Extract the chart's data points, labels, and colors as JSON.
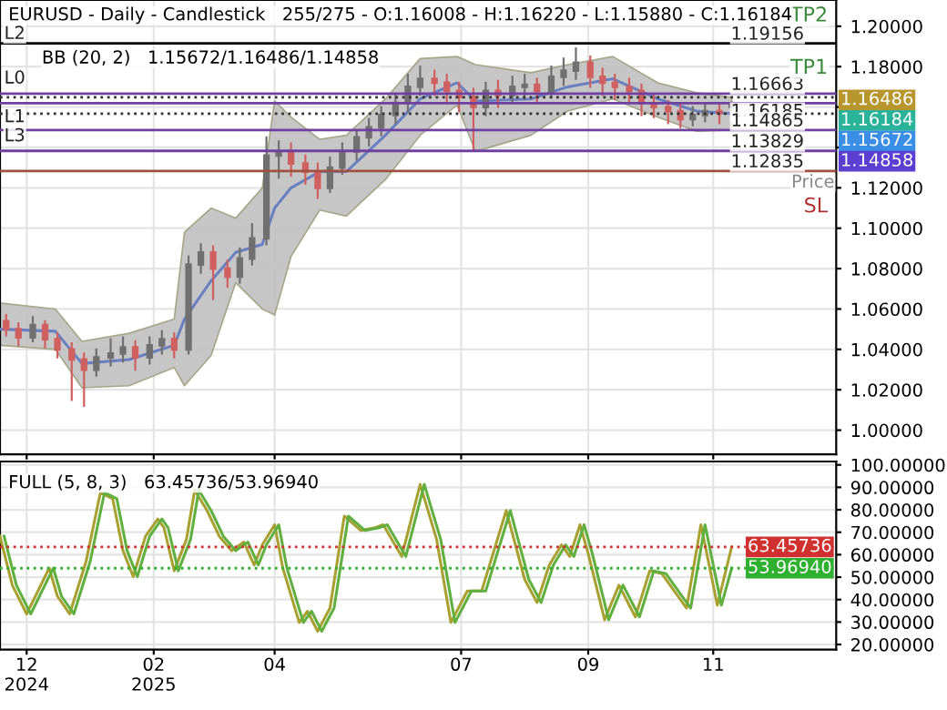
{
  "chart_data": [
    {
      "type": "candlestick",
      "title": "EURUSD - Daily - Candlestick   255/275 - O:1.16008 - H:1.16220 - L:1.15880 - C:1.16184",
      "subtitle": "BB (20, 2)   1.15672/1.16486/1.14858",
      "x": [
        "2024-11-21",
        "2024-11-27",
        "2024-12-04",
        "2024-12-10",
        "2024-12-16",
        "2024-12-23",
        "2024-12-29",
        "2025-01-04",
        "2025-01-11",
        "2025-01-17",
        "2025-01-23",
        "2025-01-30",
        "2025-02-05",
        "2025-02-11",
        "2025-02-18",
        "2025-02-24",
        "2025-03-02",
        "2025-03-09",
        "2025-03-15",
        "2025-03-21",
        "2025-03-28",
        "2025-04-03",
        "2025-04-09",
        "2025-04-16",
        "2025-04-22",
        "2025-04-28",
        "2025-05-04",
        "2025-05-11",
        "2025-05-17",
        "2025-05-23",
        "2025-05-30",
        "2025-06-05",
        "2025-06-11",
        "2025-06-18",
        "2025-06-24",
        "2025-06-30",
        "2025-07-07",
        "2025-07-13",
        "2025-07-19",
        "2025-07-26",
        "2025-08-01",
        "2025-08-07",
        "2025-08-14",
        "2025-08-20",
        "2025-08-26",
        "2025-09-02",
        "2025-09-08",
        "2025-09-14",
        "2025-09-21",
        "2025-09-27",
        "2025-10-03",
        "2025-10-10",
        "2025-10-16",
        "2025-10-22",
        "2025-10-28",
        "2025-11-04",
        "2025-11-10"
      ],
      "ohlc": [
        [
          1.054,
          1.057,
          1.047,
          1.05
        ],
        [
          1.05,
          1.053,
          1.042,
          1.046
        ],
        [
          1.046,
          1.056,
          1.044,
          1.052
        ],
        [
          1.052,
          1.054,
          1.041,
          1.045
        ],
        [
          1.045,
          1.048,
          1.036,
          1.04
        ],
        [
          1.04,
          1.043,
          1.015,
          1.035
        ],
        [
          1.035,
          1.038,
          1.012,
          1.03
        ],
        [
          1.03,
          1.04,
          1.027,
          1.036
        ],
        [
          1.036,
          1.045,
          1.032,
          1.038
        ],
        [
          1.038,
          1.046,
          1.034,
          1.041
        ],
        [
          1.041,
          1.044,
          1.03,
          1.036
        ],
        [
          1.036,
          1.046,
          1.033,
          1.042
        ],
        [
          1.042,
          1.049,
          1.038,
          1.045
        ],
        [
          1.045,
          1.048,
          1.036,
          1.04
        ],
        [
          1.04,
          1.086,
          1.038,
          1.082
        ],
        [
          1.082,
          1.092,
          1.078,
          1.088
        ],
        [
          1.088,
          1.091,
          1.065,
          1.08
        ],
        [
          1.08,
          1.084,
          1.071,
          1.076
        ],
        [
          1.076,
          1.09,
          1.073,
          1.085
        ],
        [
          1.085,
          1.102,
          1.082,
          1.095
        ],
        [
          1.095,
          1.145,
          1.092,
          1.136
        ],
        [
          1.136,
          1.143,
          1.125,
          1.138
        ],
        [
          1.138,
          1.142,
          1.126,
          1.132
        ],
        [
          1.132,
          1.136,
          1.122,
          1.128
        ],
        [
          1.128,
          1.132,
          1.115,
          1.12
        ],
        [
          1.12,
          1.135,
          1.118,
          1.13
        ],
        [
          1.13,
          1.142,
          1.127,
          1.138
        ],
        [
          1.138,
          1.148,
          1.134,
          1.145
        ],
        [
          1.145,
          1.154,
          1.141,
          1.15
        ],
        [
          1.15,
          1.16,
          1.146,
          1.156
        ],
        [
          1.156,
          1.166,
          1.152,
          1.162
        ],
        [
          1.162,
          1.176,
          1.158,
          1.17
        ],
        [
          1.17,
          1.18,
          1.166,
          1.174
        ],
        [
          1.174,
          1.178,
          1.166,
          1.172
        ],
        [
          1.172,
          1.176,
          1.162,
          1.168
        ],
        [
          1.168,
          1.172,
          1.158,
          1.165
        ],
        [
          1.165,
          1.169,
          1.139,
          1.16
        ],
        [
          1.16,
          1.172,
          1.156,
          1.168
        ],
        [
          1.168,
          1.173,
          1.16,
          1.166
        ],
        [
          1.166,
          1.175,
          1.162,
          1.17
        ],
        [
          1.17,
          1.176,
          1.164,
          1.171
        ],
        [
          1.171,
          1.174,
          1.162,
          1.168
        ],
        [
          1.168,
          1.18,
          1.165,
          1.175
        ],
        [
          1.175,
          1.184,
          1.171,
          1.178
        ],
        [
          1.178,
          1.189,
          1.174,
          1.182
        ],
        [
          1.182,
          1.185,
          1.17,
          1.175
        ],
        [
          1.175,
          1.179,
          1.166,
          1.172
        ],
        [
          1.172,
          1.176,
          1.164,
          1.17
        ],
        [
          1.17,
          1.174,
          1.162,
          1.168
        ],
        [
          1.168,
          1.171,
          1.156,
          1.162
        ],
        [
          1.162,
          1.166,
          1.155,
          1.16
        ],
        [
          1.16,
          1.163,
          1.152,
          1.158
        ],
        [
          1.158,
          1.161,
          1.15,
          1.154
        ],
        [
          1.154,
          1.16,
          1.151,
          1.156
        ],
        [
          1.156,
          1.162,
          1.153,
          1.158
        ],
        [
          1.158,
          1.161,
          1.152,
          1.157
        ],
        [
          1.16008,
          1.1622,
          1.1588,
          1.16184
        ]
      ],
      "series": [
        {
          "type": "line",
          "color": "#6a7fc0",
          "x": [
            "2024-11-18",
            "2024-12-15",
            "2024-12-28",
            "2025-01-20",
            "2025-02-11",
            "2025-02-16",
            "2025-03-01",
            "2025-03-13",
            "2025-03-26",
            "2025-04-01",
            "2025-04-09",
            "2025-04-23",
            "2025-05-06",
            "2025-05-25",
            "2025-06-11",
            "2025-06-29",
            "2025-07-08",
            "2025-08-04",
            "2025-08-22",
            "2025-09-13",
            "2025-10-05",
            "2025-10-24",
            "2025-11-10"
          ],
          "values": [
            1.05,
            1.049,
            1.033,
            1.035,
            1.042,
            1.055,
            1.074,
            1.088,
            1.092,
            1.11,
            1.12,
            1.128,
            1.128,
            1.146,
            1.164,
            1.172,
            1.163,
            1.164,
            1.17,
            1.174,
            1.164,
            1.158,
            1.15672
          ],
          "lower": [
            1.042,
            1.04,
            1.021,
            1.022,
            1.031,
            1.022,
            1.037,
            1.073,
            1.06,
            1.057,
            1.086,
            1.109,
            1.106,
            1.124,
            1.146,
            1.161,
            1.138,
            1.146,
            1.158,
            1.164,
            1.155,
            1.148,
            1.14858
          ],
          "upper": [
            1.063,
            1.06,
            1.044,
            1.048,
            1.055,
            1.098,
            1.11,
            1.105,
            1.12,
            1.163,
            1.155,
            1.144,
            1.146,
            1.164,
            1.184,
            1.185,
            1.181,
            1.177,
            1.181,
            1.185,
            1.172,
            1.167,
            1.16486
          ]
        }
      ],
      "xlim": [
        "2024-11-18",
        "2025-12-31"
      ],
      "xticks": [
        {
          "value": "2024-12-01",
          "label": null
        },
        {
          "value": "2025-02-01",
          "label": null
        },
        {
          "value": "2025-04-01",
          "label": null
        },
        {
          "value": "2025-07-01",
          "label": null
        },
        {
          "value": "2025-09-01",
          "label": null
        },
        {
          "value": "2025-11-01",
          "label": null
        }
      ],
      "ylim": [
        0.988,
        1.213
      ],
      "yticks": [
        {
          "value": 1.0,
          "label": "1.00000"
        },
        {
          "value": 1.02,
          "label": "1.02000"
        },
        {
          "value": 1.04,
          "label": "1.04000"
        },
        {
          "value": 1.06,
          "label": "1.06000"
        },
        {
          "value": 1.08,
          "label": "1.08000"
        },
        {
          "value": 1.1,
          "label": "1.10000"
        },
        {
          "value": 1.12,
          "label": "1.12000"
        },
        {
          "value": 1.14,
          "label": null
        },
        {
          "value": 1.16,
          "label": null
        },
        {
          "value": 1.18,
          "label": "1.18000"
        },
        {
          "value": 1.2,
          "label": "1.20000"
        }
      ],
      "tick_labels": "y",
      "grid": true,
      "ref_lines": [
        {
          "axis": "y",
          "value": 1.19156,
          "label": "1.19156",
          "color": "#000000",
          "line_style": "solid"
        },
        {
          "axis": "y",
          "value": 1.16663,
          "label": "1.16663",
          "color": "#7040a0",
          "line_style": "solid"
        },
        {
          "axis": "y",
          "value": 1.16185,
          "label": "1.16185",
          "color": "#7040a0",
          "line_style": "solid"
        },
        {
          "axis": "y",
          "value": 1.14865,
          "label": "1.14865",
          "color": "#7040a0",
          "line_style": "solid"
        },
        {
          "axis": "y",
          "value": 1.13829,
          "label": "1.13829",
          "color": "#7040a0",
          "line_style": "solid"
        },
        {
          "axis": "y",
          "value": 1.12835,
          "label": "1.12835",
          "color": "#a05040",
          "line_style": "solid"
        },
        {
          "axis": "y",
          "value": 1.16486,
          "label": null,
          "color": "#333333",
          "line_style": "dotted"
        },
        {
          "axis": "y",
          "value": 1.15672,
          "label": null,
          "color": "#333333",
          "line_style": "dotted"
        }
      ],
      "annotations": [
        "L2",
        "L0",
        "L1",
        "L3",
        "TP2",
        "TP1",
        "Price",
        "SL",
        "1.16486",
        "1.16184",
        "1.15672",
        "1.14858"
      ]
    },
    {
      "type": "line",
      "title": "FULL (5, 8, 3)   63.45736/53.96940",
      "series": [
        {
          "color": "#a8a030",
          "x": [
            "2024-11-18",
            "2024-11-24",
            "2024-12-01",
            "2024-12-12",
            "2024-12-16",
            "2024-12-22",
            "2024-12-30",
            "2025-01-06",
            "2025-01-12",
            "2025-01-17",
            "2025-01-22",
            "2025-01-28",
            "2025-02-03",
            "2025-02-06",
            "2025-02-11",
            "2025-02-17",
            "2025-02-21",
            "2025-02-27",
            "2025-03-05",
            "2025-03-11",
            "2025-03-17",
            "2025-03-22",
            "2025-03-26",
            "2025-04-01",
            "2025-04-05",
            "2025-04-13",
            "2025-04-17",
            "2025-04-22",
            "2025-04-28",
            "2025-05-05",
            "2025-05-13",
            "2025-05-20",
            "2025-05-24",
            "2025-06-02",
            "2025-06-11",
            "2025-06-19",
            "2025-06-26",
            "2025-07-04",
            "2025-07-11",
            "2025-07-23",
            "2025-08-01",
            "2025-08-07",
            "2025-08-13",
            "2025-08-19",
            "2025-08-23",
            "2025-08-28",
            "2025-09-01",
            "2025-09-09",
            "2025-09-16",
            "2025-09-24",
            "2025-10-01",
            "2025-10-07",
            "2025-10-13",
            "2025-10-19",
            "2025-10-26",
            "2025-11-03",
            "2025-11-10"
          ],
          "values": [
            68.2,
            46.4,
            33.6,
            54,
            41.5,
            33.6,
            57,
            87.7,
            84.9,
            61.8,
            50.2,
            68.2,
            75.9,
            72,
            52.8,
            66.9,
            88.7,
            79.7,
            68.2,
            61.8,
            65.6,
            55.4,
            64.4,
            73.3,
            54,
            29.8,
            34.8,
            25.9,
            36.2,
            77.2,
            70.8,
            72,
            73.3,
            59.2,
            91.3,
            66.9,
            29.8,
            43.8,
            43.8,
            79.7,
            49,
            38.7,
            55.4,
            64.4,
            59.2,
            73.3,
            60.5,
            31,
            46.4,
            32.3,
            52.8,
            51.5,
            43.8,
            36.2,
            73.3,
            37.5,
            63.45736
          ]
        },
        {
          "color": "#60b040",
          "x": [
            "2024-11-20",
            "2024-11-26",
            "2024-12-03",
            "2024-12-14",
            "2024-12-18",
            "2024-12-24",
            "2025-01-01",
            "2025-01-08",
            "2025-01-14",
            "2025-01-19",
            "2025-01-24",
            "2025-01-30",
            "2025-02-05",
            "2025-02-08",
            "2025-02-13",
            "2025-02-19",
            "2025-02-23",
            "2025-03-01",
            "2025-03-07",
            "2025-03-13",
            "2025-03-19",
            "2025-03-24",
            "2025-03-28",
            "2025-04-03",
            "2025-04-07",
            "2025-04-15",
            "2025-04-19",
            "2025-04-24",
            "2025-04-30",
            "2025-05-07",
            "2025-05-15",
            "2025-05-22",
            "2025-05-26",
            "2025-06-04",
            "2025-06-13",
            "2025-06-21",
            "2025-06-28",
            "2025-07-06",
            "2025-07-13",
            "2025-07-25",
            "2025-08-03",
            "2025-08-09",
            "2025-08-15",
            "2025-08-21",
            "2025-08-25",
            "2025-08-30",
            "2025-09-03",
            "2025-09-11",
            "2025-09-18",
            "2025-09-26",
            "2025-10-03",
            "2025-10-09",
            "2025-10-15",
            "2025-10-21",
            "2025-10-28",
            "2025-11-05",
            "2025-11-10"
          ],
          "values": [
            68.2,
            46.4,
            33.6,
            54,
            41.5,
            33.6,
            57,
            87.7,
            84.9,
            61.8,
            50.2,
            68.2,
            75.9,
            72,
            52.8,
            66.9,
            88.7,
            79.7,
            68.2,
            61.8,
            65.6,
            55.4,
            64.4,
            73.3,
            54,
            29.8,
            34.8,
            25.9,
            36.2,
            77.2,
            70.8,
            72,
            73.3,
            59.2,
            91.3,
            66.9,
            29.8,
            43.8,
            43.8,
            79.7,
            49,
            38.7,
            55.4,
            64.4,
            59.2,
            73.3,
            60.5,
            31,
            46.4,
            32.3,
            52.8,
            51.5,
            43.8,
            36.2,
            73.3,
            37.5,
            53.9694
          ]
        }
      ],
      "xlim": [
        "2024-11-18",
        "2025-12-31"
      ],
      "xticks": [
        {
          "value": "2024-12-01",
          "label": "12\n2024"
        },
        {
          "value": "2025-02-01",
          "label": "02\n2025"
        },
        {
          "value": "2025-04-01",
          "label": "04"
        },
        {
          "value": "2025-07-01",
          "label": "07"
        },
        {
          "value": "2025-09-01",
          "label": "09"
        },
        {
          "value": "2025-11-01",
          "label": "11"
        }
      ],
      "ylim": [
        17.7,
        101.5
      ],
      "yticks": [
        {
          "value": 20,
          "label": "20.00000"
        },
        {
          "value": 30,
          "label": "30.00000"
        },
        {
          "value": 40,
          "label": "40.00000"
        },
        {
          "value": 50,
          "label": "50.00000"
        },
        {
          "value": 60,
          "label": "60.00000"
        },
        {
          "value": 70,
          "label": "70.00000"
        },
        {
          "value": 80,
          "label": "80.00000"
        },
        {
          "value": 90,
          "label": "90.00000"
        },
        {
          "value": 100,
          "label": "100.00000"
        }
      ],
      "grid": true,
      "marker": "none",
      "line_style": "solid",
      "ref_lines": [
        {
          "axis": "y",
          "value": 63.45736,
          "label": "63.45736",
          "color": "#d03030",
          "line_style": "dotted"
        },
        {
          "axis": "y",
          "value": 53.9694,
          "label": "53.96940",
          "color": "#30b030",
          "line_style": "dotted"
        }
      ]
    }
  ]
}
